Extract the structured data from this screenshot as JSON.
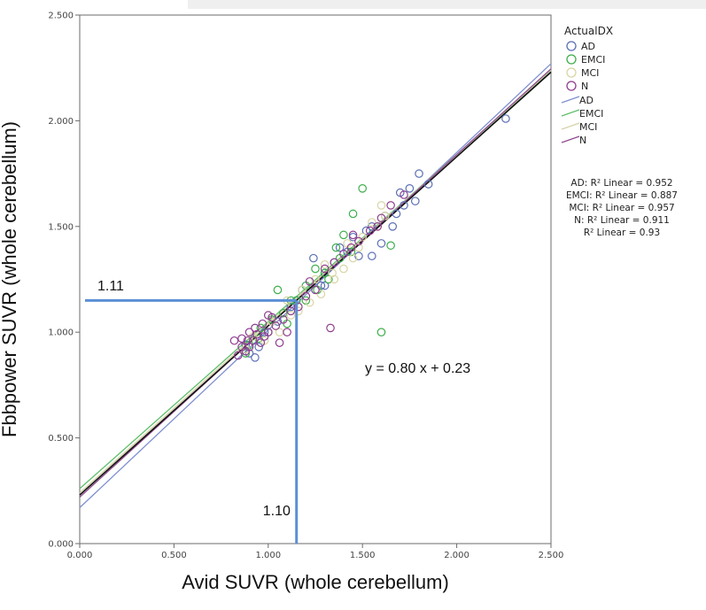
{
  "chart_data": {
    "type": "scatter",
    "xlabel": "Avid SUVR (whole cerebellum)",
    "ylabel": "Fbbpower SUVR (whole cerebellum)",
    "xlim": [
      0,
      2.5
    ],
    "ylim": [
      0,
      2.5
    ],
    "x_ticks": [
      "0.000",
      "0.500",
      "1.000",
      "1.500",
      "2.000",
      "2.500"
    ],
    "y_ticks": [
      "0.000",
      "0.500",
      "1.000",
      "1.500",
      "2.000",
      "2.500"
    ],
    "grid": false,
    "legend_title": "ActualDX",
    "legend_placement": "top-right",
    "series": [
      {
        "name": "AD",
        "color": "#5b6fb5",
        "points": [
          [
            2.26,
            2.01
          ],
          [
            1.8,
            1.75
          ],
          [
            1.85,
            1.7
          ],
          [
            1.7,
            1.66
          ],
          [
            1.72,
            1.6
          ],
          [
            1.68,
            1.56
          ],
          [
            1.75,
            1.68
          ],
          [
            1.55,
            1.5
          ],
          [
            1.6,
            1.42
          ],
          [
            1.45,
            1.45
          ],
          [
            1.42,
            1.38
          ],
          [
            1.38,
            1.4
          ],
          [
            1.35,
            1.33
          ],
          [
            1.24,
            1.35
          ],
          [
            1.3,
            1.28
          ],
          [
            1.28,
            1.22
          ],
          [
            1.48,
            1.36
          ],
          [
            1.55,
            1.36
          ],
          [
            1.52,
            1.48
          ],
          [
            1.62,
            1.55
          ],
          [
            1.18,
            1.2
          ],
          [
            1.15,
            1.15
          ],
          [
            1.05,
            1.05
          ],
          [
            0.98,
            1.0
          ],
          [
            0.95,
            0.93
          ],
          [
            0.9,
            0.9
          ],
          [
            0.93,
            0.88
          ],
          [
            0.88,
            0.94
          ],
          [
            1.12,
            1.12
          ],
          [
            1.3,
            1.22
          ],
          [
            1.66,
            1.5
          ],
          [
            1.78,
            1.62
          ]
        ]
      },
      {
        "name": "EMCI",
        "color": "#3dae4b",
        "points": [
          [
            1.5,
            1.68
          ],
          [
            1.6,
            1.0
          ],
          [
            1.65,
            1.41
          ],
          [
            1.45,
            1.56
          ],
          [
            1.4,
            1.46
          ],
          [
            1.36,
            1.4
          ],
          [
            1.3,
            1.28
          ],
          [
            1.25,
            1.3
          ],
          [
            1.2,
            1.22
          ],
          [
            1.15,
            1.15
          ],
          [
            1.12,
            1.15
          ],
          [
            1.05,
            1.2
          ],
          [
            1.0,
            1.0
          ],
          [
            0.95,
            0.97
          ],
          [
            0.9,
            0.94
          ],
          [
            1.08,
            1.09
          ],
          [
            1.2,
            1.15
          ],
          [
            1.32,
            1.25
          ],
          [
            1.38,
            1.35
          ],
          [
            1.44,
            1.38
          ],
          [
            1.02,
            1.06
          ],
          [
            0.96,
            1.02
          ],
          [
            0.88,
            0.9
          ],
          [
            1.1,
            1.04
          ],
          [
            1.26,
            1.2
          ]
        ]
      },
      {
        "name": "MCI",
        "color": "#d8d5a3",
        "points": [
          [
            1.6,
            1.6
          ],
          [
            1.62,
            1.55
          ],
          [
            1.55,
            1.52
          ],
          [
            1.5,
            1.45
          ],
          [
            1.45,
            1.35
          ],
          [
            1.4,
            1.3
          ],
          [
            1.35,
            1.25
          ],
          [
            1.3,
            1.32
          ],
          [
            1.28,
            1.18
          ],
          [
            1.22,
            1.14
          ],
          [
            1.18,
            1.2
          ],
          [
            1.12,
            1.08
          ],
          [
            1.06,
            1.0
          ],
          [
            1.02,
            1.05
          ],
          [
            0.98,
            0.96
          ],
          [
            0.92,
            0.98
          ],
          [
            0.88,
            0.92
          ],
          [
            1.25,
            1.25
          ],
          [
            1.42,
            1.42
          ],
          [
            1.1,
            1.15
          ],
          [
            1.16,
            1.1
          ],
          [
            1.34,
            1.28
          ],
          [
            1.48,
            1.4
          ],
          [
            1.58,
            1.5
          ]
        ]
      },
      {
        "name": "N",
        "color": "#8f3d8f",
        "points": [
          [
            1.6,
            1.54
          ],
          [
            1.58,
            1.5
          ],
          [
            1.54,
            1.48
          ],
          [
            1.48,
            1.43
          ],
          [
            1.44,
            1.4
          ],
          [
            1.4,
            1.37
          ],
          [
            1.33,
            1.02
          ],
          [
            1.3,
            1.3
          ],
          [
            1.25,
            1.2
          ],
          [
            1.2,
            1.17
          ],
          [
            1.16,
            1.12
          ],
          [
            1.12,
            1.1
          ],
          [
            1.08,
            1.06
          ],
          [
            1.04,
            1.03
          ],
          [
            1.0,
            1.0
          ],
          [
            0.98,
            0.98
          ],
          [
            0.96,
            0.95
          ],
          [
            0.94,
            0.99
          ],
          [
            0.92,
            0.96
          ],
          [
            0.9,
            0.93
          ],
          [
            0.88,
            0.91
          ],
          [
            0.86,
            0.93
          ],
          [
            0.84,
            0.89
          ],
          [
            0.82,
            0.96
          ],
          [
            1.06,
            0.95
          ],
          [
            1.02,
            1.07
          ],
          [
            0.97,
            1.04
          ],
          [
            0.93,
            1.02
          ],
          [
            0.89,
            0.96
          ],
          [
            1.1,
            1.0
          ],
          [
            0.86,
            0.97
          ],
          [
            0.9,
            1.0
          ],
          [
            1.0,
            1.08
          ],
          [
            1.35,
            1.33
          ],
          [
            1.45,
            1.46
          ],
          [
            1.65,
            1.6
          ],
          [
            1.72,
            1.65
          ],
          [
            1.22,
            1.24
          ]
        ]
      }
    ],
    "fit_lines": [
      {
        "name": "AD",
        "color": "#7e8fd0",
        "intercept": 0.17,
        "slope": 0.84
      },
      {
        "name": "EMCI",
        "color": "#5fbf6c",
        "intercept": 0.26,
        "slope": 0.79
      },
      {
        "name": "MCI",
        "color": "#d6d3a6",
        "intercept": 0.24,
        "slope": 0.8
      },
      {
        "name": "N",
        "color": "#8f4a8f",
        "intercept": 0.22,
        "slope": 0.81
      },
      {
        "name": "Total",
        "color": "#111111",
        "intercept": 0.23,
        "slope": 0.8
      }
    ],
    "r2_labels": [
      "AD: R² Linear = 0.952",
      "EMCI: R² Linear = 0.887",
      "MCI: R² Linear = 0.957",
      "N: R² Linear = 0.911",
      "R² Linear = 0.93"
    ],
    "equation": "y = 0.80 x + 0.23",
    "guide_lines": {
      "x_value": 1.15,
      "y_value": 1.15,
      "x_label": "1.10",
      "y_label": "1.11",
      "color": "#5b8fd6"
    }
  }
}
